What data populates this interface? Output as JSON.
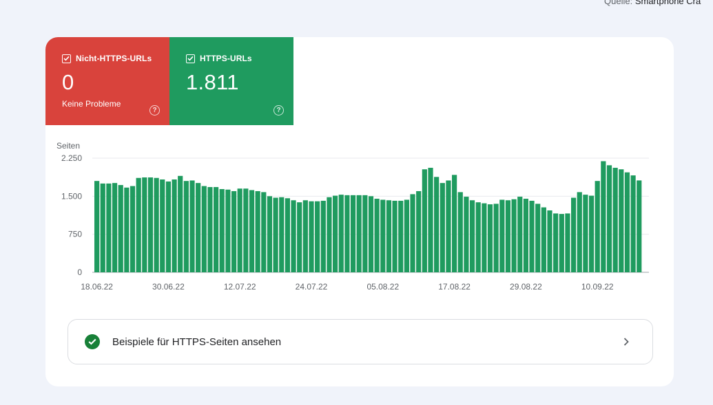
{
  "source": {
    "label": "Quelle:",
    "value": "Smartphone Cra"
  },
  "tiles": [
    {
      "label": "Nicht-HTTPS-URLs",
      "value": "0",
      "sub": "Keine Probleme",
      "color": "#d9433c"
    },
    {
      "label": "HTTPS-URLs",
      "value": "1.811",
      "sub": "",
      "color": "#1f9b5f"
    }
  ],
  "chart_data": {
    "type": "bar",
    "ylabel": "Seiten",
    "ylim": [
      0,
      2250
    ],
    "yticks": [
      0,
      750,
      1500,
      2250
    ],
    "ytick_labels": [
      "0",
      "750",
      "1.500",
      "2.250"
    ],
    "xtick_labels": [
      "18.06.22",
      "30.06.22",
      "12.07.22",
      "24.07.22",
      "05.08.22",
      "17.08.22",
      "29.08.22",
      "10.09.22"
    ],
    "xtick_index": [
      0,
      12,
      24,
      36,
      48,
      60,
      72,
      84
    ],
    "bar_color": "#1f9b5f",
    "grid": true,
    "values": [
      1800,
      1750,
      1750,
      1760,
      1720,
      1670,
      1700,
      1860,
      1870,
      1870,
      1860,
      1830,
      1790,
      1830,
      1900,
      1800,
      1810,
      1760,
      1700,
      1680,
      1680,
      1640,
      1630,
      1600,
      1650,
      1650,
      1620,
      1600,
      1580,
      1500,
      1470,
      1480,
      1460,
      1420,
      1380,
      1420,
      1400,
      1400,
      1410,
      1480,
      1510,
      1530,
      1520,
      1520,
      1520,
      1520,
      1500,
      1450,
      1430,
      1420,
      1410,
      1410,
      1430,
      1540,
      1600,
      2030,
      2060,
      1880,
      1760,
      1810,
      1920,
      1580,
      1490,
      1420,
      1380,
      1360,
      1340,
      1350,
      1430,
      1420,
      1440,
      1490,
      1450,
      1410,
      1350,
      1280,
      1220,
      1160,
      1150,
      1160,
      1470,
      1580,
      1530,
      1510,
      1800,
      2190,
      2110,
      2060,
      2030,
      1970,
      1910,
      1811
    ]
  },
  "action": {
    "label": "Beispiele für HTTPS-Seiten ansehen"
  },
  "colors": {
    "action_check": "#188038",
    "grid": "#e8eaed",
    "axis": "#9aa0a6"
  }
}
